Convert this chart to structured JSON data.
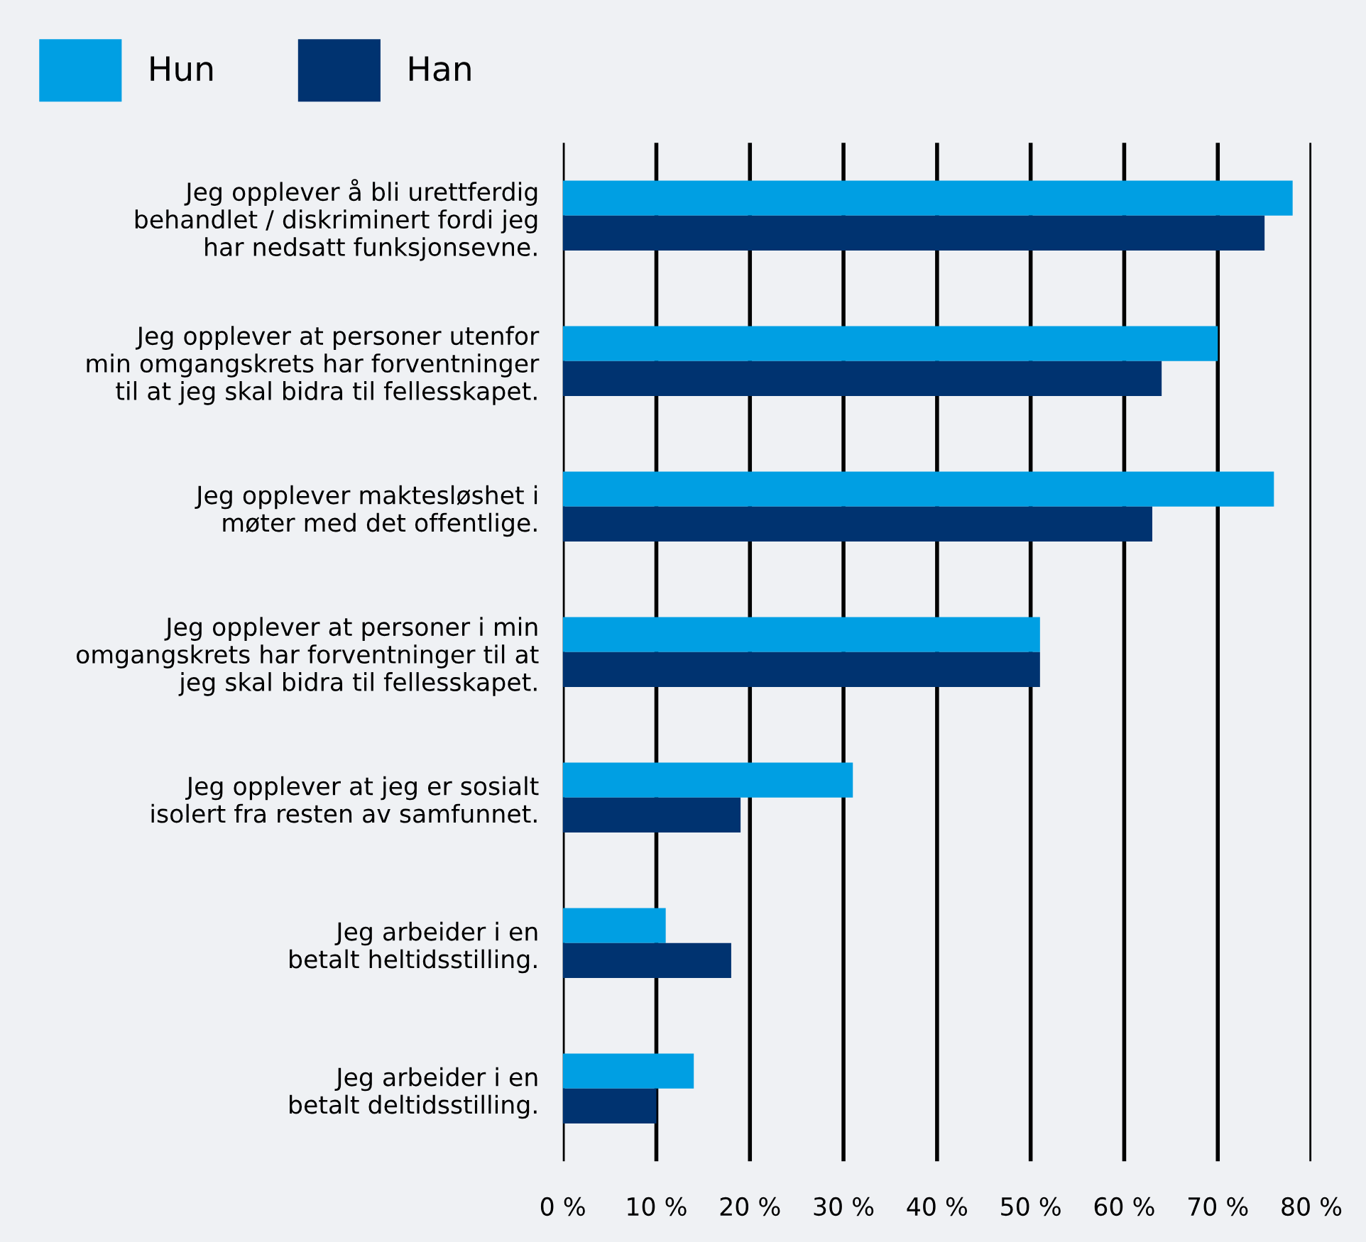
{
  "chart_data": {
    "type": "bar",
    "orientation": "horizontal",
    "categories": [
      "Jeg opplever å bli urettferdig\nbehandlet / diskriminert fordi jeg\nhar nedsatt funksjonsevne.",
      "Jeg opplever at personer utenfor\nmin omgangskrets har forventninger\ntil at jeg skal bidra til fellesskapet.",
      "Jeg opplever maktesløshet i\nmøter med det offentlige.",
      "Jeg opplever at personer i min\nomgangskrets har forventninger til at\njeg skal bidra til fellesskapet.",
      "Jeg opplever at jeg er sosialt\nisolert fra resten av samfunnet.",
      "Jeg arbeider i en\nbetalt heltidsstilling.",
      "Jeg arbeider i en\nbetalt deltidsstilling."
    ],
    "series": [
      {
        "name": "Hun",
        "color": "#009fe3",
        "values": [
          78,
          70,
          76,
          51,
          31,
          11,
          14
        ]
      },
      {
        "name": "Han",
        "color": "#003370",
        "values": [
          75,
          64,
          63,
          51,
          19,
          18,
          10
        ]
      }
    ],
    "xlim": [
      0,
      80
    ],
    "xticks": [
      {
        "value": 0,
        "label": "0 %"
      },
      {
        "value": 10,
        "label": "10 %"
      },
      {
        "value": 20,
        "label": "20 %"
      },
      {
        "value": 30,
        "label": "30 %"
      },
      {
        "value": 40,
        "label": "40 %"
      },
      {
        "value": 50,
        "label": "50 %"
      },
      {
        "value": 60,
        "label": "60 %"
      },
      {
        "value": 70,
        "label": "70 %"
      },
      {
        "value": 80,
        "label": "80 %"
      }
    ],
    "grid": "x",
    "legend": "top left"
  }
}
